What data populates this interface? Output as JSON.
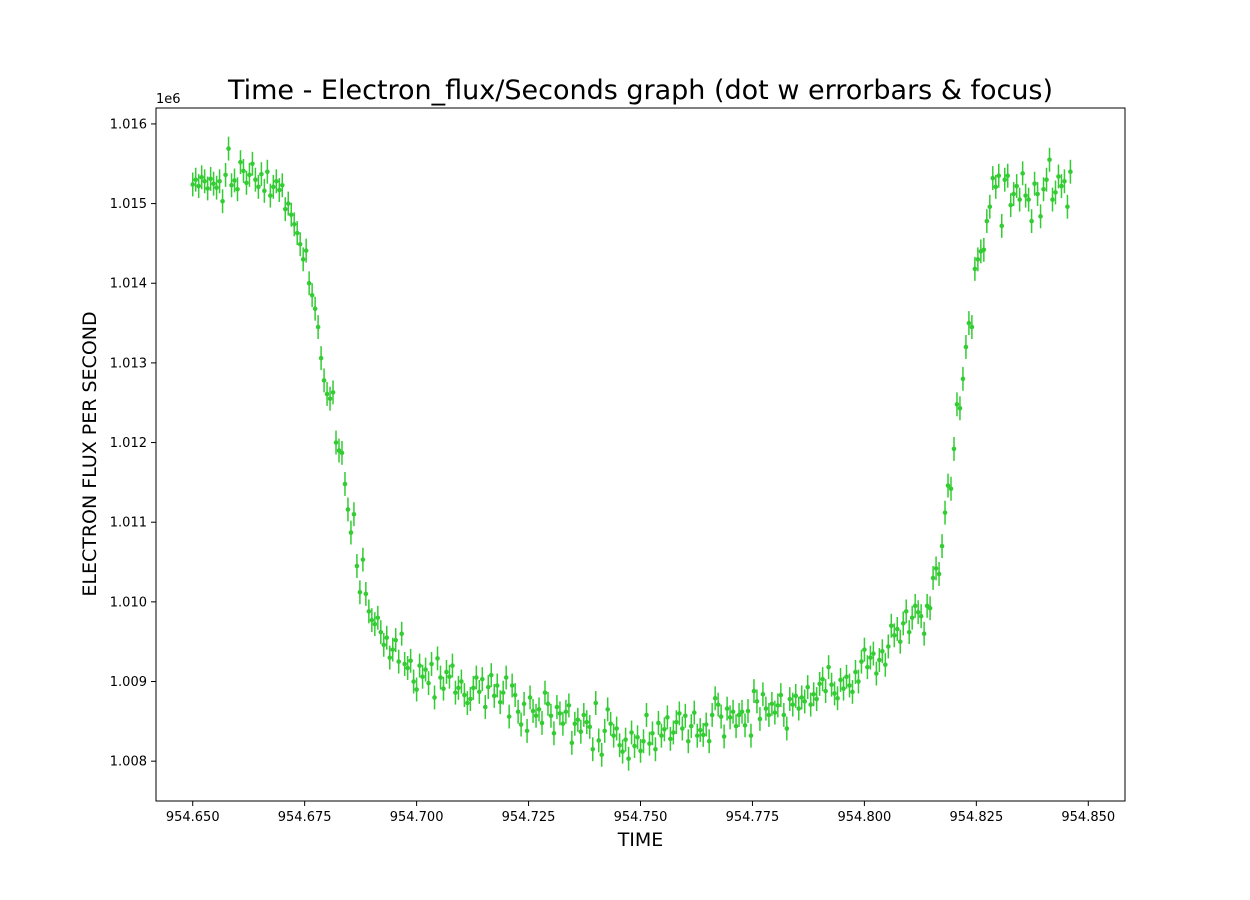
{
  "chart_data": {
    "type": "scatter",
    "title": "Time - Electron_flux/Seconds graph (dot w errorbars & focus)",
    "xlabel": "TIME",
    "ylabel": "ELECTRON FLUX PER SECOND",
    "y_offset_label": "1e6",
    "xlim": [
      954.6418,
      954.8582
    ],
    "ylim": [
      1007.5,
      1016.2
    ],
    "x_ticks": [
      954.65,
      954.675,
      954.7,
      954.725,
      954.75,
      954.775,
      954.8,
      954.825,
      954.85
    ],
    "x_tick_labels": [
      "954.650",
      "954.675",
      "954.700",
      "954.725",
      "954.750",
      "954.775",
      "954.800",
      "954.825",
      "954.850"
    ],
    "y_ticks": [
      1008,
      1009,
      1010,
      1011,
      1012,
      1013,
      1014,
      1015,
      1016
    ],
    "y_tick_labels": [
      "1.008",
      "1.009",
      "1.010",
      "1.011",
      "1.012",
      "1.013",
      "1.014",
      "1.015",
      "1.016"
    ],
    "grid": false,
    "legend": "none",
    "marker_color": "#33cc33",
    "error_bar_half_width": 0.15,
    "series": [
      {
        "x_start": 954.65,
        "x_step": 0.0006667,
        "y": [
          1015.24,
          1015.3,
          1015.22,
          1015.33,
          1015.28,
          1015.19,
          1015.31,
          1015.25,
          1015.2,
          1015.28,
          1015.03,
          1015.36,
          1015.69,
          1015.23,
          1015.29,
          1015.18,
          1015.52,
          1015.41,
          1015.26,
          1015.36,
          1015.5,
          1015.3,
          1015.21,
          1015.37,
          1015.16,
          1015.4,
          1015.1,
          1015.21,
          1015.28,
          1015.17,
          1015.23,
          1014.93,
          1015.0,
          1014.86,
          1014.74,
          1014.63,
          1014.49,
          1014.3,
          1014.41,
          1014.0,
          1013.85,
          1013.68,
          1013.45,
          1013.06,
          1012.78,
          1012.61,
          1012.55,
          1012.63,
          1012.0,
          1011.9,
          1011.87,
          1011.48,
          1011.16,
          1010.87,
          1011.1,
          1010.45,
          1010.12,
          1010.53,
          1010.1,
          1009.88,
          1009.77,
          1009.72,
          1009.8,
          1009.62,
          1009.46,
          1009.55,
          1009.3,
          1009.4,
          1009.52,
          1009.25,
          1009.6,
          1009.22,
          1009.17,
          1009.26,
          1009.0,
          1008.9,
          1009.2,
          1009.06,
          1009.15,
          1008.98,
          1009.22,
          1008.8,
          1009.29,
          1009.05,
          1008.91,
          1009.12,
          1009.06,
          1009.2,
          1008.86,
          1008.92,
          1009.0,
          1008.83,
          1008.73,
          1008.78,
          1008.92,
          1009.05,
          1008.87,
          1009.03,
          1008.68,
          1008.93,
          1009.08,
          1008.82,
          1008.95,
          1008.74,
          1008.86,
          1009.05,
          1008.56,
          1008.95,
          1008.83,
          1008.62,
          1008.46,
          1008.72,
          1008.38,
          1008.8,
          1008.63,
          1008.57,
          1008.65,
          1008.48,
          1008.86,
          1008.72,
          1008.57,
          1008.35,
          1008.68,
          1008.6,
          1008.47,
          1008.62,
          1008.7,
          1008.23,
          1008.47,
          1008.52,
          1008.37,
          1008.58,
          1008.49,
          1008.43,
          1008.15,
          1008.73,
          1008.26,
          1008.08,
          1008.38,
          1008.65,
          1008.47,
          1008.32,
          1008.41,
          1008.2,
          1008.12,
          1008.27,
          1008.03,
          1008.36,
          1008.19,
          1008.3,
          1008.13,
          1008.25,
          1008.58,
          1008.22,
          1008.35,
          1008.15,
          1008.48,
          1008.32,
          1008.4,
          1008.55,
          1008.28,
          1008.36,
          1008.49,
          1008.6,
          1008.41,
          1008.57,
          1008.25,
          1008.44,
          1008.61,
          1008.32,
          1008.39,
          1008.33,
          1008.46,
          1008.25,
          1008.58,
          1008.79,
          1008.71,
          1008.56,
          1008.31,
          1008.66,
          1008.55,
          1008.62,
          1008.44,
          1008.58,
          1008.62,
          1008.45,
          1008.63,
          1008.32,
          1008.88,
          1008.75,
          1008.53,
          1008.84,
          1008.66,
          1008.58,
          1008.72,
          1008.61,
          1008.7,
          1008.83,
          1008.58,
          1008.41,
          1008.78,
          1008.71,
          1008.82,
          1008.66,
          1008.8,
          1008.75,
          1008.93,
          1008.71,
          1008.84,
          1008.78,
          1008.97,
          1009.03,
          1008.88,
          1009.18,
          1008.96,
          1008.85,
          1008.79,
          1009.02,
          1008.91,
          1009.06,
          1008.95,
          1008.87,
          1009.12,
          1009.0,
          1009.25,
          1009.4,
          1009.18,
          1009.3,
          1009.35,
          1009.1,
          1009.27,
          1009.38,
          1009.21,
          1009.44,
          1009.7,
          1009.58,
          1009.66,
          1009.5,
          1009.73,
          1009.88,
          1009.62,
          1009.8,
          1009.95,
          1009.87,
          1009.82,
          1009.6,
          1009.95,
          1009.92,
          1010.3,
          1010.42,
          1010.35,
          1010.7,
          1011.12,
          1011.46,
          1011.42,
          1011.92,
          1012.48,
          1012.43,
          1012.8,
          1013.2,
          1013.5,
          1013.45,
          1014.18,
          1014.3,
          1014.4,
          1014.42,
          1014.78,
          1014.96,
          1015.32,
          1015.21,
          1015.35,
          1014.72,
          1015.3,
          1015.35,
          1014.98,
          1015.12,
          1015.22,
          1015.05,
          1015.38,
          1015.1,
          1015.05,
          1014.78,
          1015.25,
          1015.12,
          1014.84,
          1015.18,
          1015.3,
          1015.55,
          1015.05,
          1015.14,
          1015.34,
          1015.22,
          1015.28,
          1014.96,
          1015.4
        ],
        "y_err": 0.15
      }
    ]
  }
}
